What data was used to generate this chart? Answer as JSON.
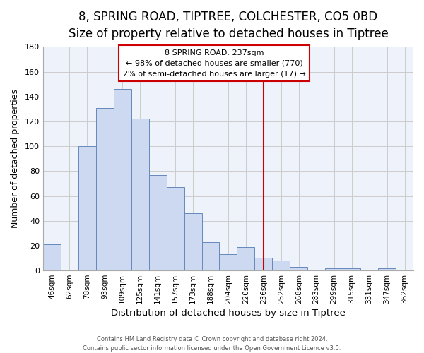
{
  "title": "8, SPRING ROAD, TIPTREE, COLCHESTER, CO5 0BD",
  "subtitle": "Size of property relative to detached houses in Tiptree",
  "xlabel": "Distribution of detached houses by size in Tiptree",
  "ylabel": "Number of detached properties",
  "bar_labels": [
    "46sqm",
    "62sqm",
    "78sqm",
    "93sqm",
    "109sqm",
    "125sqm",
    "141sqm",
    "157sqm",
    "173sqm",
    "188sqm",
    "204sqm",
    "220sqm",
    "236sqm",
    "252sqm",
    "268sqm",
    "283sqm",
    "299sqm",
    "315sqm",
    "331sqm",
    "347sqm",
    "362sqm"
  ],
  "bar_values": [
    21,
    0,
    100,
    131,
    146,
    122,
    77,
    67,
    46,
    23,
    13,
    19,
    10,
    8,
    3,
    0,
    2,
    2,
    0,
    2,
    0
  ],
  "bar_color": "#ccd9f0",
  "bar_edge_color": "#6688bb",
  "vline_x_idx": 12,
  "vline_color": "#cc0000",
  "annotation_title": "8 SPRING ROAD: 237sqm",
  "annotation_line1": "← 98% of detached houses are smaller (770)",
  "annotation_line2": "2% of semi-detached houses are larger (17) →",
  "annotation_box_color": "#ffffff",
  "annotation_border_color": "#cc0000",
  "ylim": [
    0,
    180
  ],
  "yticks": [
    0,
    20,
    40,
    60,
    80,
    100,
    120,
    140,
    160,
    180
  ],
  "background_color": "#eef2fb",
  "footer1": "Contains HM Land Registry data © Crown copyright and database right 2024.",
  "footer2": "Contains public sector information licensed under the Open Government Licence v3.0.",
  "title_fontsize": 12,
  "subtitle_fontsize": 10,
  "title_fontweight": "normal"
}
